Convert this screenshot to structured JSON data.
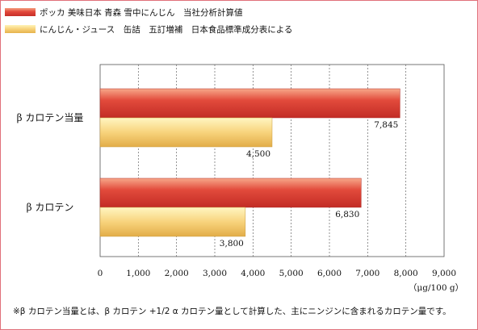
{
  "legend": [
    {
      "label": "ポッカ 美味日本 青森 雪中にんじん　当社分析計算値",
      "color": "#dc3f33"
    },
    {
      "label": "にんじん・ジュース　缶詰　五訂増補　日本食品標準成分表による",
      "color": "#f5c96a"
    }
  ],
  "chart_data": {
    "type": "bar",
    "orientation": "horizontal",
    "categories": [
      "β カロテン当量",
      "β カロテン"
    ],
    "series": [
      {
        "name": "ポッカ 美味日本 青森 雪中にんじん　当社分析計算値",
        "values": [
          7845,
          6830
        ],
        "labels": [
          "7,845",
          "6,830"
        ],
        "color": "#dc3f33"
      },
      {
        "name": "にんじん・ジュース　缶詰　五訂増補　日本食品標準成分表による",
        "values": [
          4500,
          3800
        ],
        "labels": [
          "4,500",
          "3,800"
        ],
        "color": "#f5c96a"
      }
    ],
    "xlim": [
      0,
      9000
    ],
    "xticks": [
      0,
      1000,
      2000,
      3000,
      4000,
      5000,
      6000,
      7000,
      8000,
      9000
    ],
    "xtick_labels": [
      "0",
      "1,000",
      "2,000",
      "3,000",
      "4,000",
      "5,000",
      "6,000",
      "7,000",
      "8,000",
      "9,000"
    ],
    "unit_label": "（μg/100 g）",
    "grid": "vertical-dashed",
    "legend_position": "top-left"
  },
  "footnote": "※β カロテン当量とは、β カロテン +1/2 α カロテン量として計算した、主にニンジンに含まれるカロテン量です。"
}
